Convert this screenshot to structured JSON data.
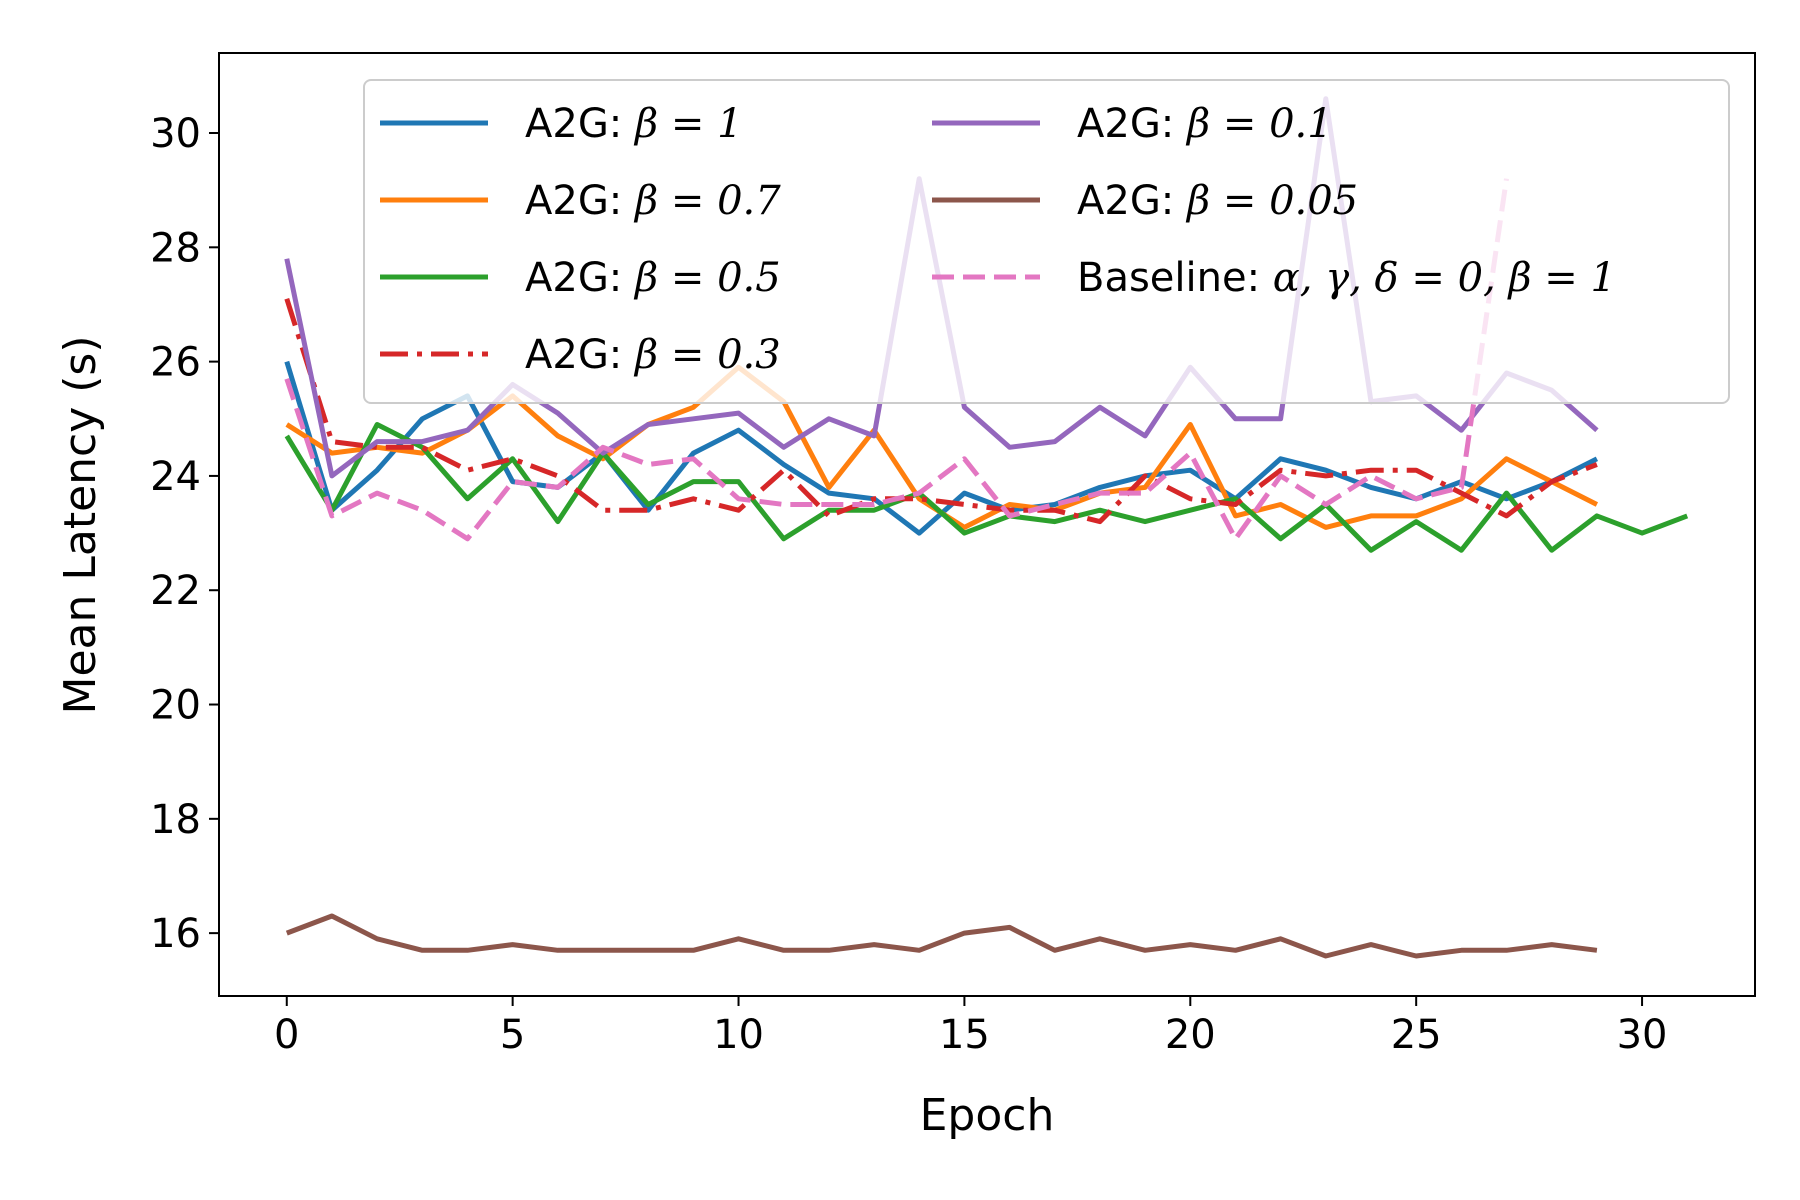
{
  "chart_data": {
    "type": "line",
    "title": "",
    "xlabel": "Epoch",
    "ylabel": "Mean Latency (s)",
    "xlim": [
      -1.5,
      32.5
    ],
    "ylim": [
      14.9,
      31.4
    ],
    "xticks": [
      0,
      5,
      10,
      15,
      20,
      25,
      30
    ],
    "yticks": [
      16,
      18,
      20,
      22,
      24,
      26,
      28,
      30
    ],
    "grid": false,
    "legend_position": "top-right",
    "legend_columns": 2,
    "series": [
      {
        "name": "A2G: β = 1",
        "legend_prefix": "A2G: ",
        "legend_math": "β = 1",
        "color": "#1f77b4",
        "style": "solid",
        "x": [
          0,
          1,
          2,
          3,
          4,
          5,
          6,
          7,
          8,
          9,
          10,
          11,
          12,
          13,
          14,
          15,
          16,
          17,
          18,
          19,
          20,
          21,
          22,
          23,
          24,
          25,
          26,
          27,
          28,
          29
        ],
        "values": [
          26.0,
          23.4,
          24.1,
          25.0,
          25.4,
          23.9,
          23.8,
          24.4,
          23.4,
          24.4,
          24.8,
          24.2,
          23.7,
          23.6,
          23.0,
          23.7,
          23.4,
          23.5,
          23.8,
          24.0,
          24.1,
          23.6,
          24.3,
          24.1,
          23.8,
          23.6,
          23.9,
          23.6,
          23.9,
          24.3
        ]
      },
      {
        "name": "A2G: β = 0.7",
        "legend_prefix": "A2G: ",
        "legend_math": "β = 0.7",
        "color": "#ff7f0e",
        "style": "solid",
        "x": [
          0,
          1,
          2,
          3,
          4,
          5,
          6,
          7,
          8,
          9,
          10,
          11,
          12,
          13,
          14,
          15,
          16,
          17,
          18,
          19,
          20,
          21,
          22,
          23,
          24,
          25,
          26,
          27,
          28,
          29
        ],
        "values": [
          24.9,
          24.4,
          24.5,
          24.4,
          24.8,
          25.4,
          24.7,
          24.3,
          24.9,
          25.2,
          25.9,
          25.3,
          23.8,
          24.8,
          23.6,
          23.1,
          23.5,
          23.4,
          23.7,
          23.8,
          24.9,
          23.3,
          23.5,
          23.1,
          23.3,
          23.3,
          23.6,
          24.3,
          23.9,
          23.5
        ]
      },
      {
        "name": "A2G: β = 0.5",
        "legend_prefix": "A2G: ",
        "legend_math": "β = 0.5",
        "color": "#2ca02c",
        "style": "solid",
        "x": [
          0,
          1,
          2,
          3,
          4,
          5,
          6,
          7,
          8,
          9,
          10,
          11,
          12,
          13,
          14,
          15,
          16,
          17,
          18,
          19,
          20,
          21,
          22,
          23,
          24,
          25,
          26,
          27,
          28,
          29,
          30,
          31
        ],
        "values": [
          24.7,
          23.4,
          24.9,
          24.5,
          23.6,
          24.3,
          23.2,
          24.4,
          23.5,
          23.9,
          23.9,
          22.9,
          23.4,
          23.4,
          23.7,
          23.0,
          23.3,
          23.2,
          23.4,
          23.2,
          23.4,
          23.6,
          22.9,
          23.5,
          22.7,
          23.2,
          22.7,
          23.7,
          22.7,
          23.3,
          23.0,
          23.3
        ]
      },
      {
        "name": "A2G: β = 0.3",
        "legend_prefix": "A2G: ",
        "legend_math": "β = 0.3",
        "color": "#d62728",
        "style": "dashdot",
        "x": [
          0,
          1,
          2,
          3,
          4,
          5,
          6,
          7,
          8,
          9,
          10,
          11,
          12,
          13,
          14,
          15,
          16,
          17,
          18,
          19,
          20,
          21,
          22,
          23,
          24,
          25,
          26,
          27,
          28,
          29
        ],
        "values": [
          27.1,
          24.6,
          24.5,
          24.5,
          24.1,
          24.3,
          24.0,
          23.4,
          23.4,
          23.6,
          23.4,
          24.1,
          23.3,
          23.6,
          23.6,
          23.5,
          23.4,
          23.4,
          23.2,
          24.0,
          23.6,
          23.5,
          24.1,
          24.0,
          24.1,
          24.1,
          23.7,
          23.3,
          23.9,
          24.2
        ]
      },
      {
        "name": "A2G: β = 0.1",
        "legend_prefix": "A2G: ",
        "legend_math": "β = 0.1",
        "color": "#9467bd",
        "style": "solid",
        "x": [
          0,
          1,
          2,
          3,
          4,
          5,
          6,
          7,
          8,
          9,
          10,
          11,
          12,
          13,
          14,
          15,
          16,
          17,
          18,
          19,
          20,
          21,
          22,
          23,
          24,
          25,
          26,
          27,
          28,
          29
        ],
        "values": [
          27.8,
          24.0,
          24.6,
          24.6,
          24.8,
          25.6,
          25.1,
          24.4,
          24.9,
          25.0,
          25.1,
          24.5,
          25.0,
          24.7,
          29.2,
          25.2,
          24.5,
          24.6,
          25.2,
          24.7,
          25.9,
          25.0,
          25.0,
          30.6,
          25.3,
          25.4,
          24.8,
          25.8,
          25.5,
          24.8
        ]
      },
      {
        "name": "A2G: β = 0.05",
        "legend_prefix": "A2G: ",
        "legend_math": "β = 0.05",
        "color": "#8c564b",
        "style": "solid",
        "x": [
          0,
          1,
          2,
          3,
          4,
          5,
          6,
          7,
          8,
          9,
          10,
          11,
          12,
          13,
          14,
          15,
          16,
          17,
          18,
          19,
          20,
          21,
          22,
          23,
          24,
          25,
          26,
          27,
          28,
          29
        ],
        "values": [
          16.0,
          16.3,
          15.9,
          15.7,
          15.7,
          15.8,
          15.7,
          15.7,
          15.7,
          15.7,
          15.9,
          15.7,
          15.7,
          15.8,
          15.7,
          16.0,
          16.1,
          15.7,
          15.9,
          15.7,
          15.8,
          15.7,
          15.9,
          15.6,
          15.8,
          15.6,
          15.7,
          15.7,
          15.8,
          15.7
        ]
      },
      {
        "name": "Baseline: α, γ, δ = 0, β = 1",
        "legend_prefix": "Baseline: ",
        "legend_math": "α, γ, δ = 0, β = 1",
        "color": "#e377c2",
        "style": "dashed",
        "x": [
          0,
          1,
          2,
          3,
          4,
          5,
          6,
          7,
          8,
          9,
          10,
          11,
          12,
          13,
          14,
          15,
          16,
          17,
          18,
          19,
          20,
          21,
          22,
          23,
          24,
          25,
          26,
          27
        ],
        "values": [
          25.7,
          23.3,
          23.7,
          23.4,
          22.9,
          23.9,
          23.8,
          24.5,
          24.2,
          24.3,
          23.6,
          23.5,
          23.5,
          23.5,
          23.7,
          24.3,
          23.3,
          23.5,
          23.7,
          23.7,
          24.4,
          22.9,
          24.0,
          23.5,
          24.0,
          23.6,
          23.8,
          29.2
        ]
      }
    ]
  }
}
